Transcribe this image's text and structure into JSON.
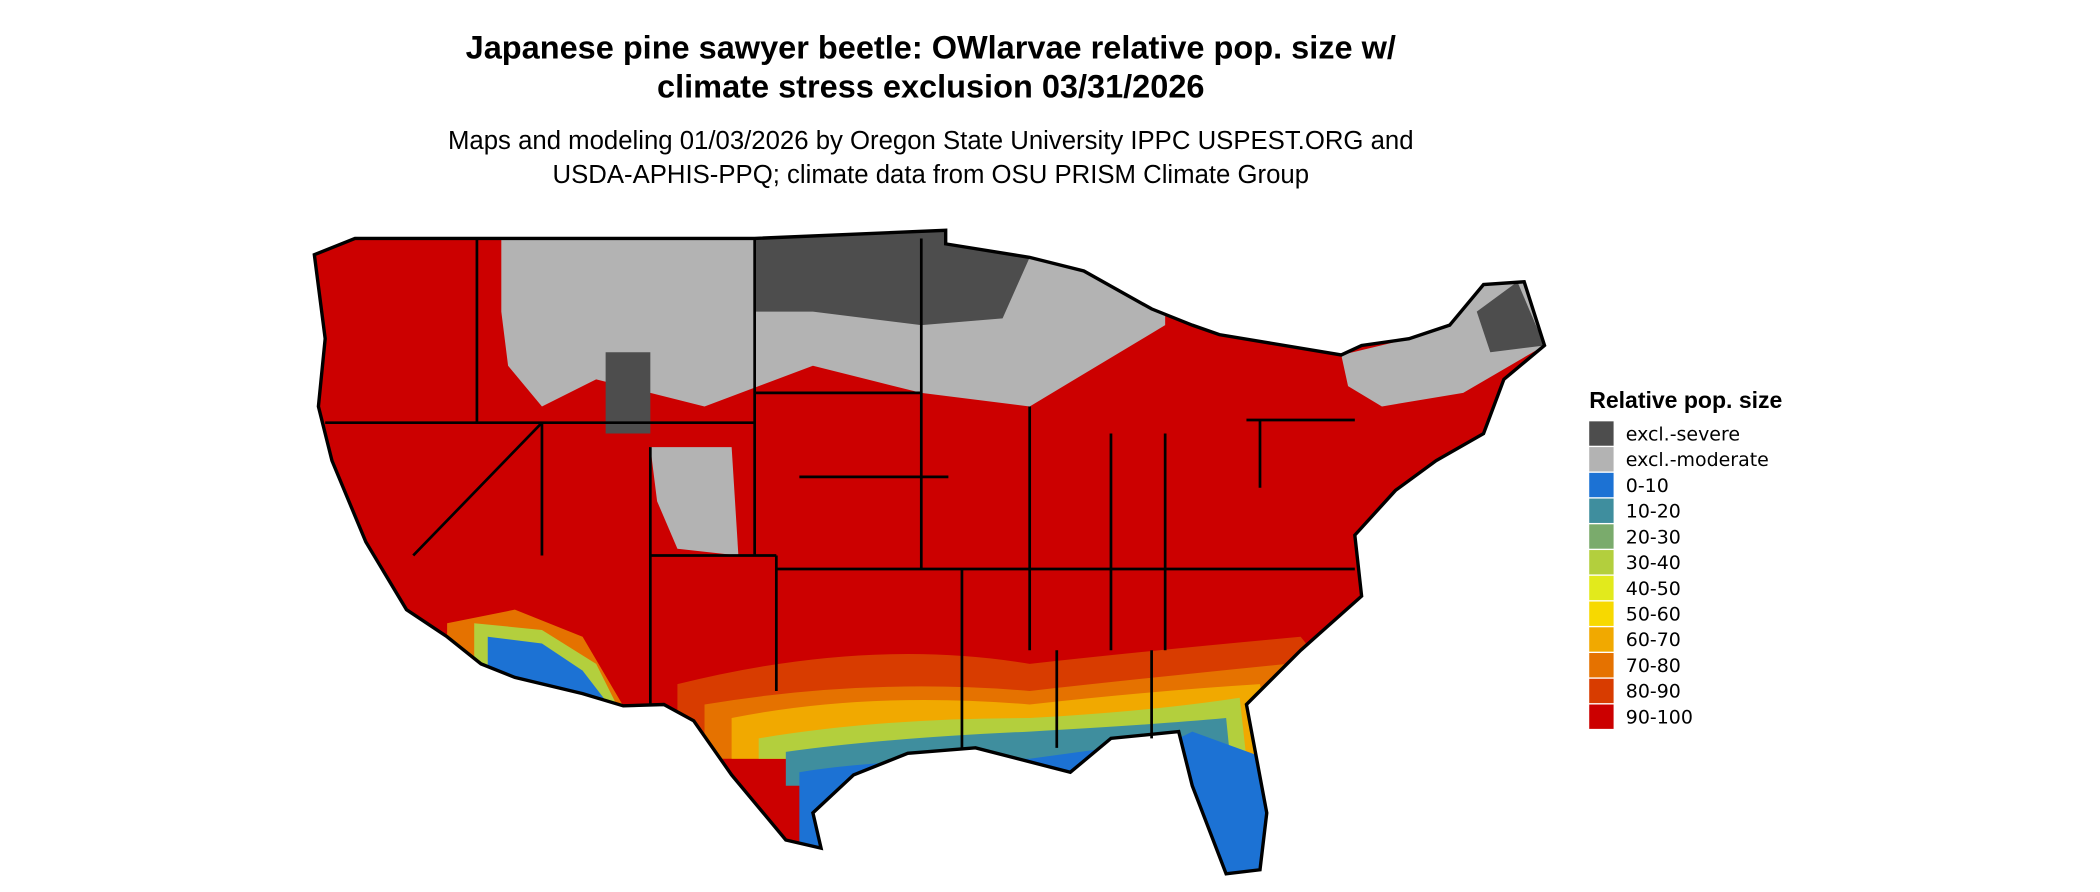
{
  "header": {
    "title": [
      "Japanese pine sawyer beetle: OWlarvae relative pop. size w/",
      "climate stress exclusion 03/31/2026"
    ],
    "subtitle": [
      "Maps and modeling 01/03/2026 by Oregon State University IPPC USPEST.ORG and",
      "USDA-APHIS-PPQ; climate data from OSU PRISM Climate Group"
    ]
  },
  "legend": {
    "title": "Relative pop. size",
    "items": [
      {
        "label": "excl.-severe",
        "color": "#4d4d4d"
      },
      {
        "label": "excl.-moderate",
        "color": "#b3b3b3"
      },
      {
        "label": "0-10",
        "color": "#1c72d4"
      },
      {
        "label": "10-20",
        "color": "#3f8e9e"
      },
      {
        "label": "20-30",
        "color": "#7aab6c"
      },
      {
        "label": "30-40",
        "color": "#b3cf3d"
      },
      {
        "label": "40-50",
        "color": "#e2ea1c"
      },
      {
        "label": "50-60",
        "color": "#f7d900"
      },
      {
        "label": "60-70",
        "color": "#f1a900"
      },
      {
        "label": "70-80",
        "color": "#e57200"
      },
      {
        "label": "80-90",
        "color": "#d83c00"
      },
      {
        "label": "90-100",
        "color": "#cc0000"
      }
    ]
  }
}
